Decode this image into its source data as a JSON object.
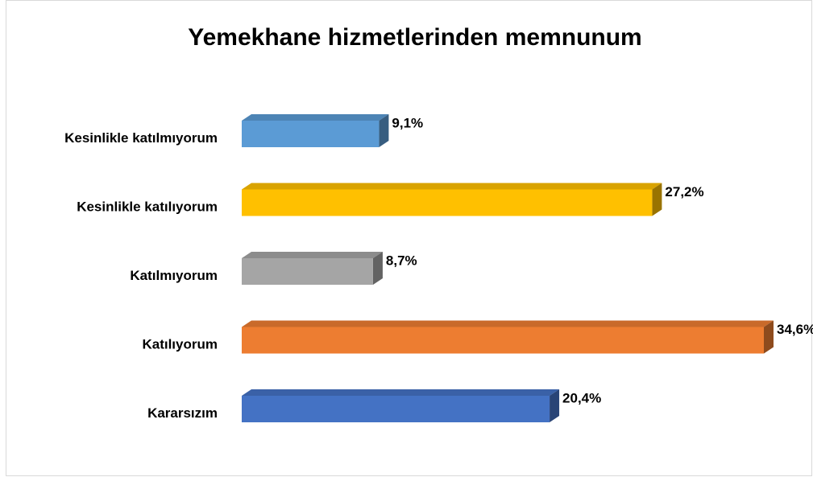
{
  "chart_data": {
    "type": "bar3d_horizontal",
    "title": "Yemekhane hizmetlerinden memnunum",
    "categories": [
      "Kesinlikle katılmıyorum",
      "Kesinlikle katılıyorum",
      "Katılmıyorum",
      "Katılıyorum",
      "Kararsızım"
    ],
    "values": [
      9.1,
      27.2,
      8.7,
      34.6,
      20.4
    ],
    "value_labels": [
      "9,1%",
      "27,2%",
      "8,7%",
      "34,6%",
      "20,4%"
    ],
    "colors": [
      "#5b9bd5",
      "#ffc000",
      "#a5a5a5",
      "#ed7d31",
      "#4472c4"
    ]
  }
}
